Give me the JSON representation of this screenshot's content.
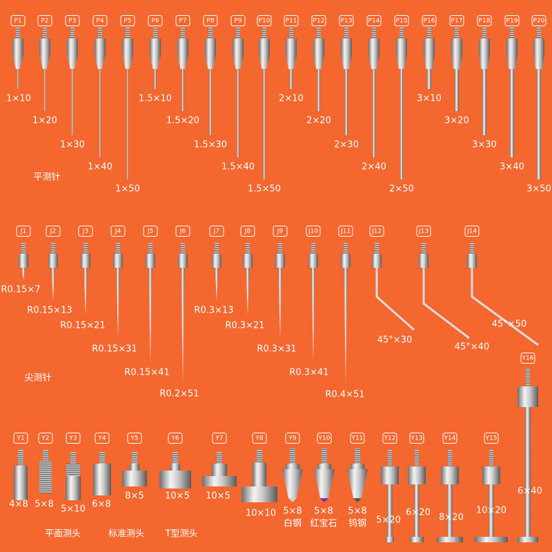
{
  "flat_probes": {
    "label": "平测针",
    "items": [
      {
        "code": "P1",
        "size": "1×10"
      },
      {
        "code": "P2",
        "size": "1×20"
      },
      {
        "code": "P3",
        "size": "1×30"
      },
      {
        "code": "P4",
        "size": "1×40"
      },
      {
        "code": "P5",
        "size": "1×50"
      },
      {
        "code": "P6",
        "size": "1.5×10"
      },
      {
        "code": "P7",
        "size": "1.5×20"
      },
      {
        "code": "P8",
        "size": "1.5×30"
      },
      {
        "code": "P9",
        "size": "1.5×40"
      },
      {
        "code": "P10",
        "size": "1.5×50"
      },
      {
        "code": "P11",
        "size": "2×10"
      },
      {
        "code": "P12",
        "size": "2×20"
      },
      {
        "code": "P13",
        "size": "2×30"
      },
      {
        "code": "P14",
        "size": "2×40"
      },
      {
        "code": "P15",
        "size": "2×50"
      },
      {
        "code": "P16",
        "size": "3×10"
      },
      {
        "code": "P17",
        "size": "3×20"
      },
      {
        "code": "P18",
        "size": "3×30"
      },
      {
        "code": "P19",
        "size": "3×40"
      },
      {
        "code": "P20",
        "size": "3×50"
      }
    ]
  },
  "pointed_probes": {
    "label": "尖测针",
    "items": [
      {
        "code": "J1",
        "size": "R0.15×7"
      },
      {
        "code": "J2",
        "size": "R0.15×13"
      },
      {
        "code": "J3",
        "size": "R0.15×21"
      },
      {
        "code": "J4",
        "size": "R0.15×31"
      },
      {
        "code": "J5",
        "size": "R0.15×41"
      },
      {
        "code": "J6",
        "size": "R0.2×51"
      },
      {
        "code": "J7",
        "size": "R0.3×13"
      },
      {
        "code": "J8",
        "size": "R0.3×21"
      },
      {
        "code": "J9",
        "size": "R0.3×31"
      },
      {
        "code": "J10",
        "size": "R0.3×41"
      },
      {
        "code": "J11",
        "size": "R0.4×51"
      },
      {
        "code": "J12",
        "size": "45°×30"
      },
      {
        "code": "J13",
        "size": "45°×40"
      },
      {
        "code": "J14",
        "size": "45°×50"
      }
    ]
  },
  "heads": {
    "labels": [
      "平面测头",
      "标准测头",
      "T型测头"
    ],
    "items": [
      {
        "code": "Y1",
        "size": "4×8"
      },
      {
        "code": "Y2",
        "size": "5×8"
      },
      {
        "code": "Y3",
        "size": "5×10"
      },
      {
        "code": "Y4",
        "size": "6×8"
      },
      {
        "code": "Y5",
        "size": "8×5"
      },
      {
        "code": "Y6",
        "size": "10×5"
      },
      {
        "code": "Y7",
        "size": "10×5"
      },
      {
        "code": "Y8",
        "size": "10×10"
      },
      {
        "code": "Y9",
        "size": "5×8",
        "material": "白钢"
      },
      {
        "code": "Y10",
        "size": "5×8",
        "material": "红宝石"
      },
      {
        "code": "Y11",
        "size": "5×8",
        "material": "钨钢"
      },
      {
        "code": "Y12",
        "size": "5×20"
      },
      {
        "code": "Y13",
        "size": "6×20"
      },
      {
        "code": "Y14",
        "size": "8×20"
      },
      {
        "code": "Y15",
        "size": "10×20"
      },
      {
        "code": "Y16",
        "size": "6×40"
      }
    ]
  }
}
